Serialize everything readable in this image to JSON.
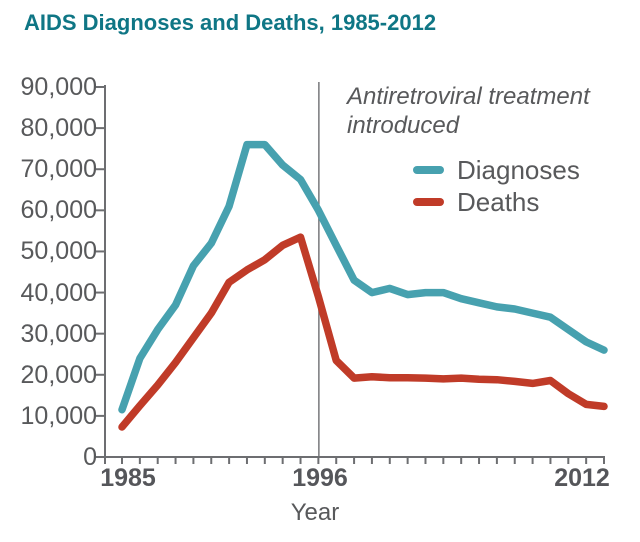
{
  "title": "AIDS Diagnoses and Deaths, 1985-2012",
  "annotation": {
    "line1": "Antiretroviral treatment",
    "line2": "introduced"
  },
  "legend": [
    {
      "label": "Diagnoses",
      "color": "#47a1af"
    },
    {
      "label": "Deaths",
      "color": "#c03b28"
    }
  ],
  "axis": {
    "y_ticks": [
      "90,000",
      "80,000",
      "70,000",
      "60,000",
      "50,000",
      "40,000",
      "30,000",
      "20,000",
      "10,000",
      "0"
    ],
    "x_ticks": [
      "1985",
      "1996",
      "2012"
    ],
    "x_label": "Year"
  },
  "colors": {
    "title_teal": "#0f7685",
    "axis_gray": "#6d6e71",
    "text_gray": "#58595b",
    "reference_line": "#77787b"
  },
  "chart_data": {
    "type": "line",
    "title": "AIDS Diagnoses and Deaths, 1985-2012",
    "xlabel": "Year",
    "ylabel": "",
    "ylim": [
      0,
      90000
    ],
    "y_tick_interval": 10000,
    "grid": false,
    "legend_position": "upper right inside plot",
    "x": [
      1985,
      1986,
      1987,
      1988,
      1989,
      1990,
      1991,
      1992,
      1993,
      1994,
      1995,
      1996,
      1997,
      1998,
      1999,
      2000,
      2001,
      2002,
      2003,
      2004,
      2005,
      2006,
      2007,
      2008,
      2009,
      2010,
      2011,
      2012
    ],
    "series": [
      {
        "name": "Diagnoses",
        "color": "#47a1af",
        "values": [
          11500,
          24000,
          31000,
          37000,
          46500,
          52000,
          61000,
          76000,
          76000,
          71000,
          67500,
          60000,
          51500,
          43000,
          40000,
          41000,
          39500,
          40000,
          40000,
          38500,
          37500,
          36500,
          36000,
          35000,
          34000,
          31000,
          28000,
          26000
        ]
      },
      {
        "name": "Deaths",
        "color": "#c03b28",
        "values": [
          7300,
          12500,
          17500,
          23000,
          29000,
          35000,
          42500,
          45500,
          48000,
          51500,
          53500,
          39000,
          23500,
          19200,
          19500,
          19300,
          19300,
          19200,
          19000,
          19200,
          18900,
          18800,
          18400,
          17900,
          18600,
          15400,
          12800,
          12300
        ]
      }
    ],
    "annotations": [
      {
        "type": "vline",
        "x": 1996,
        "text": "Antiretroviral treatment introduced"
      }
    ]
  }
}
